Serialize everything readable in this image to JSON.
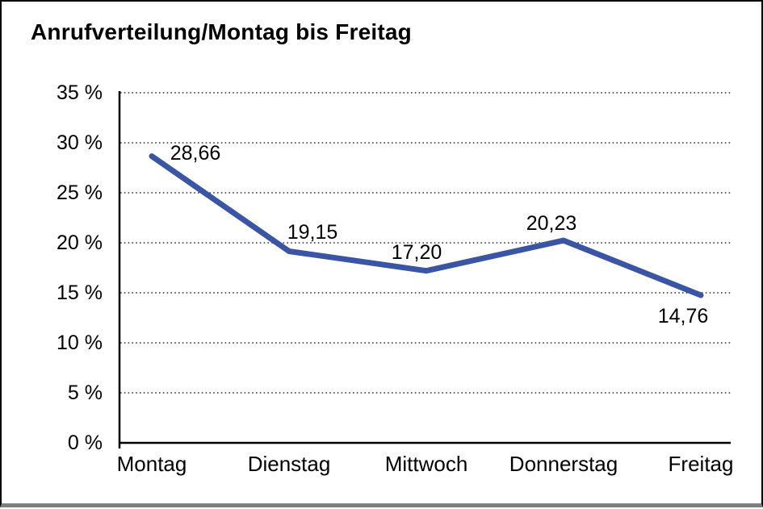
{
  "chart_data": {
    "type": "line",
    "title": "Anrufverteilung/Montag bis Freitag",
    "categories": [
      "Montag",
      "Dienstag",
      "Mittwoch",
      "Donnerstag",
      "Freitag"
    ],
    "series": [
      {
        "name": "Anrufverteilung",
        "values": [
          28.66,
          19.15,
          17.2,
          20.23,
          14.76
        ],
        "value_labels": [
          "28,66",
          "19,15",
          "17,20",
          "20,23",
          "14,76"
        ]
      }
    ],
    "ylim": [
      0,
      35
    ],
    "yticks": [
      0,
      5,
      10,
      15,
      20,
      25,
      30,
      35
    ],
    "ytick_labels": [
      "0 %",
      "5 %",
      "10 %",
      "15 %",
      "20 %",
      "25 %",
      "30 %",
      "35 %"
    ],
    "xlabel": "",
    "ylabel": "",
    "grid": "horizontal-dotted",
    "legend": "none"
  },
  "colors": {
    "line": "#3A55A3",
    "text": "#000000",
    "grid": "#2E2E2E",
    "axis": "#000000",
    "frame_border": "#000000",
    "frame_bottom": "#7F7F7F",
    "background": "#FFFFFF"
  }
}
